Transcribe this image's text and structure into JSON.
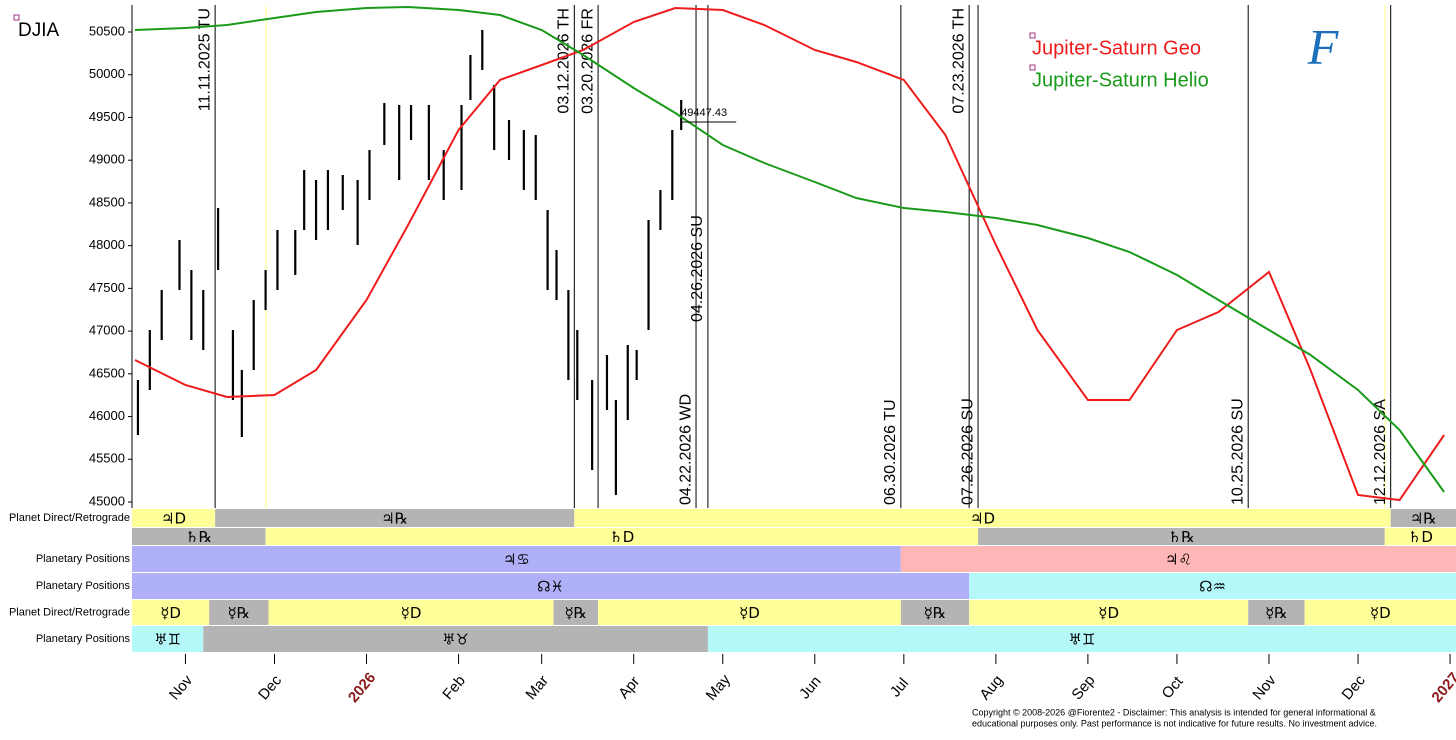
{
  "chart_data": {
    "type": "ohlc",
    "title": "DJIA",
    "logo": "F",
    "copyright": [
      "Copyright © 2008-2026 @Fiorente2 - Disclaimer: This analysis is intended for general informational &",
      "educational purposes only. Past performance is not indicative for future results. No investment advice."
    ],
    "xlim": [
      "2025-10-14",
      "2027-01-03"
    ],
    "xticks": [
      {
        "value": "2025-11-01",
        "label": "Nov"
      },
      {
        "value": "2025-12-01",
        "label": "Dec"
      },
      {
        "value": "2026-01-01",
        "label": "2026"
      },
      {
        "value": "2026-02-01",
        "label": "Feb"
      },
      {
        "value": "2026-03-01",
        "label": "Mar"
      },
      {
        "value": "2026-04-01",
        "label": "Apr"
      },
      {
        "value": "2026-05-01",
        "label": "May"
      },
      {
        "value": "2026-06-01",
        "label": "Jun"
      },
      {
        "value": "2026-07-01",
        "label": "Jul"
      },
      {
        "value": "2026-08-01",
        "label": "Aug"
      },
      {
        "value": "2026-09-01",
        "label": "Sep"
      },
      {
        "value": "2026-10-01",
        "label": "Oct"
      },
      {
        "value": "2026-11-01",
        "label": "Nov"
      },
      {
        "value": "2026-12-01",
        "label": "Dec"
      },
      {
        "value": "2027-01-01",
        "label": "2027"
      }
    ],
    "ylim": [
      44930,
      50816
    ],
    "yticks": [
      45000,
      45500,
      46000,
      46500,
      47000,
      47500,
      48000,
      48500,
      49000,
      49500,
      50000,
      50500
    ],
    "bars": {
      "x": [
        "2025-10-16",
        "2025-10-20",
        "2025-10-24",
        "2025-10-30",
        "2025-11-03",
        "2025-11-07",
        "2025-11-12",
        "2025-11-17",
        "2025-11-20",
        "2025-11-24",
        "2025-11-28",
        "2025-12-02",
        "2025-12-08",
        "2025-12-11",
        "2025-12-15",
        "2025-12-19",
        "2025-12-24",
        "2025-12-29",
        "2026-01-02",
        "2026-01-07",
        "2026-01-12",
        "2026-01-16",
        "2026-01-22",
        "2026-01-27",
        "2026-02-02",
        "2026-02-05",
        "2026-02-09",
        "2026-02-13",
        "2026-02-18",
        "2026-02-23",
        "2026-02-27",
        "2026-03-03",
        "2026-03-06",
        "2026-03-10",
        "2026-03-13",
        "2026-03-18",
        "2026-03-23",
        "2026-03-26",
        "2026-03-30",
        "2026-04-02",
        "2026-04-06",
        "2026-04-10",
        "2026-04-14",
        "2026-04-17"
      ],
      "high": [
        46428,
        47013,
        47481,
        48066,
        47715,
        47481,
        48441,
        47013,
        46545,
        47364,
        47715,
        48183,
        48183,
        48885,
        48768,
        48885,
        48827,
        48768,
        49119,
        49669,
        49646,
        49646,
        49646,
        49119,
        49646,
        50231,
        50524,
        49880,
        49471,
        49353,
        49295,
        48417,
        47949,
        47481,
        47013,
        46428,
        46720,
        46194,
        46837,
        46779,
        48300,
        48651,
        49353,
        49705
      ],
      "low": [
        45784,
        46311,
        46896,
        47481,
        46896,
        46779,
        47715,
        46194,
        45761,
        46545,
        47247,
        47481,
        47657,
        48183,
        48066,
        48183,
        48417,
        48008,
        48534,
        49178,
        48768,
        49236,
        48768,
        48534,
        48651,
        49705,
        50056,
        49119,
        49002,
        48651,
        48534,
        47481,
        47364,
        46428,
        46194,
        45374,
        46077,
        45082,
        45960,
        46428,
        47013,
        48183,
        48534,
        49353
      ]
    },
    "x": [
      "2025-10-15",
      "2025-11-01",
      "2025-11-15",
      "2025-12-01",
      "2025-12-15",
      "2026-01-01",
      "2026-01-15",
      "2026-02-01",
      "2026-02-15",
      "2026-03-01",
      "2026-03-15",
      "2026-04-01",
      "2026-04-15",
      "2026-05-01",
      "2026-05-15",
      "2026-06-01",
      "2026-06-15",
      "2026-07-01",
      "2026-07-15",
      "2026-08-01",
      "2026-08-15",
      "2026-09-01",
      "2026-09-15",
      "2026-10-01",
      "2026-10-15",
      "2026-11-01",
      "2026-11-15",
      "2026-12-01",
      "2026-12-15",
      "2026-12-30"
    ],
    "series": [
      {
        "name": "Jupiter-Saturn Geo",
        "color": "#ee1c1c",
        "values": [
          46662,
          46369,
          46229,
          46252,
          46545,
          47364,
          48242,
          49353,
          49939,
          50114,
          50290,
          50617,
          50781,
          50758,
          50582,
          50290,
          50149,
          49939,
          49295,
          48008,
          47013,
          46194,
          46194,
          47013,
          47223,
          47692,
          46545,
          45082,
          45023,
          45784
        ]
      },
      {
        "name": "Jupiter-Saturn Helio",
        "color": "#1a9a1a",
        "values": [
          50524,
          50547,
          50582,
          50664,
          50734,
          50781,
          50793,
          50758,
          50699,
          50524,
          50231,
          49845,
          49552,
          49178,
          48967,
          48745,
          48558,
          48441,
          48394,
          48324,
          48242,
          48090,
          47926,
          47657,
          47364,
          47013,
          46720,
          46311,
          45843,
          45117
        ]
      }
    ],
    "last_price": 49447.43,
    "events": [
      {
        "date": "2025-11-11",
        "label": "11.11.2025 TU"
      },
      {
        "date": "2026-03-12",
        "label": "03.12.2026 TH"
      },
      {
        "date": "2026-03-20",
        "label": "03.20.2026 FR"
      },
      {
        "date": "2026-04-22",
        "label": "04.22.2026 WD"
      },
      {
        "date": "2026-04-26",
        "label": "04.26.2026 SU"
      },
      {
        "date": "2026-06-30",
        "label": "06.30.2026 TU"
      },
      {
        "date": "2026-07-23",
        "label": "07.23.2026 TH"
      },
      {
        "date": "2026-07-26",
        "label": "07.26.2026 SU"
      },
      {
        "date": "2026-10-25",
        "label": "10.25.2026 SU"
      },
      {
        "date": "2026-12-12",
        "label": "12.12.2026 SA"
      }
    ],
    "bands": [
      {
        "label": "Planet Direct/Retrograde",
        "segments": [
          {
            "label": "♃D",
            "start": "2025-10-14",
            "end": "2025-11-11",
            "color": "#ffff99"
          },
          {
            "label": "♃℞",
            "start": "2025-11-11",
            "end": "2026-03-12",
            "color": "#b4b4b4"
          },
          {
            "label": "♃D",
            "start": "2026-03-12",
            "end": "2026-12-12",
            "color": "#ffff99"
          },
          {
            "label": "♃℞",
            "start": "2026-12-12",
            "end": "2027-01-03",
            "color": "#b4b4b4"
          }
        ]
      },
      {
        "label": null,
        "segments": [
          {
            "label": "♄℞",
            "start": "2025-10-14",
            "end": "2025-11-28",
            "color": "#b4b4b4"
          },
          {
            "label": "♄D",
            "start": "2025-11-28",
            "end": "2026-07-26",
            "color": "#ffff99"
          },
          {
            "label": "♄℞",
            "start": "2026-07-26",
            "end": "2026-12-10",
            "color": "#b4b4b4"
          },
          {
            "label": "♄D",
            "start": "2026-12-10",
            "end": "2027-01-03",
            "color": "#ffff99"
          }
        ]
      },
      {
        "label": "Planetary Positions",
        "segments": [
          {
            "label": "♃♋",
            "start": "2025-10-14",
            "end": "2026-06-30",
            "color": "#b0b0f8"
          },
          {
            "label": "♃♌",
            "start": "2026-06-30",
            "end": "2027-01-03",
            "color": "#ffb6b6"
          }
        ]
      },
      {
        "label": "Planetary Positions",
        "segments": [
          {
            "label": "☊♓",
            "start": "2025-10-14",
            "end": "2026-07-23",
            "color": "#b0b0f8"
          },
          {
            "label": "☊♒",
            "start": "2026-07-23",
            "end": "2027-01-03",
            "color": "#b4f8fa"
          }
        ]
      },
      {
        "label": "Planet Direct/Retrograde",
        "segments": [
          {
            "label": "☿D",
            "start": "2025-10-14",
            "end": "2025-11-09",
            "color": "#ffff99"
          },
          {
            "label": "☿℞",
            "start": "2025-11-09",
            "end": "2025-11-29",
            "color": "#b4b4b4"
          },
          {
            "label": "☿D",
            "start": "2025-11-29",
            "end": "2026-03-05",
            "color": "#ffff99"
          },
          {
            "label": "☿℞",
            "start": "2026-03-05",
            "end": "2026-03-20",
            "color": "#b4b4b4"
          },
          {
            "label": "☿D",
            "start": "2026-03-20",
            "end": "2026-06-30",
            "color": "#ffff99"
          },
          {
            "label": "☿℞",
            "start": "2026-06-30",
            "end": "2026-07-23",
            "color": "#b4b4b4"
          },
          {
            "label": "☿D",
            "start": "2026-07-23",
            "end": "2026-10-25",
            "color": "#ffff99"
          },
          {
            "label": "☿℞",
            "start": "2026-10-25",
            "end": "2026-11-13",
            "color": "#b4b4b4"
          },
          {
            "label": "☿D",
            "start": "2026-11-13",
            "end": "2027-01-03",
            "color": "#ffff99"
          }
        ]
      },
      {
        "label": "Planetary Positions",
        "segments": [
          {
            "label": "♅♊",
            "start": "2025-10-14",
            "end": "2025-11-07",
            "color": "#b4f8fa"
          },
          {
            "label": "♅♉",
            "start": "2025-11-07",
            "end": "2026-04-26",
            "color": "#b4b4b4"
          },
          {
            "label": "♅♊",
            "start": "2026-04-26",
            "end": "2027-01-03",
            "color": "#b4f8fa"
          }
        ]
      }
    ]
  }
}
